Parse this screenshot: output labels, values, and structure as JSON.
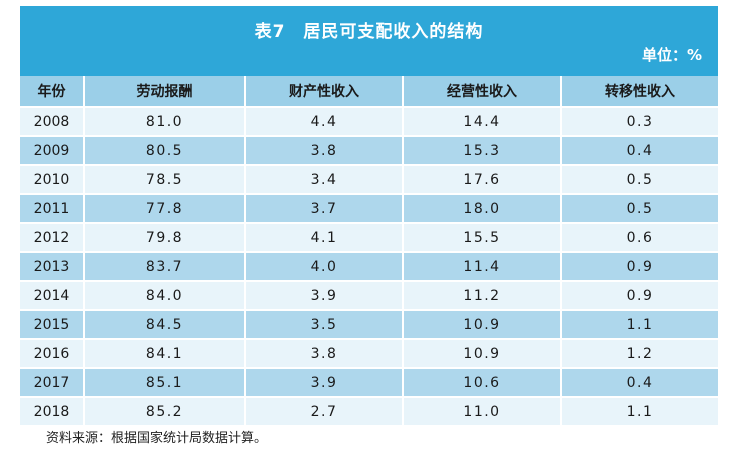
{
  "table": {
    "title": "表7　居民可支配收入的结构",
    "unit": "单位：%",
    "headers": [
      "年份",
      "劳动报酬",
      "财产性收入",
      "经营性收入",
      "转移性收入"
    ],
    "rows": [
      [
        "2008",
        "81.0",
        "4.4",
        "14.4",
        "0.3"
      ],
      [
        "2009",
        "80.5",
        "3.8",
        "15.3",
        "0.4"
      ],
      [
        "2010",
        "78.5",
        "3.4",
        "17.6",
        "0.5"
      ],
      [
        "2011",
        "77.8",
        "3.7",
        "18.0",
        "0.5"
      ],
      [
        "2012",
        "79.8",
        "4.1",
        "15.5",
        "0.6"
      ],
      [
        "2013",
        "83.7",
        "4.0",
        "11.4",
        "0.9"
      ],
      [
        "2014",
        "84.0",
        "3.9",
        "11.2",
        "0.9"
      ],
      [
        "2015",
        "84.5",
        "3.5",
        "10.9",
        "1.1"
      ],
      [
        "2016",
        "84.1",
        "3.8",
        "10.9",
        "1.2"
      ],
      [
        "2017",
        "85.1",
        "3.9",
        "10.6",
        "0.4"
      ],
      [
        "2018",
        "85.2",
        "2.7",
        "11.0",
        "1.1"
      ]
    ]
  },
  "source_note": "资料来源：根据国家统计局数据计算。",
  "colors": {
    "header_bg": "#2ea7d8",
    "column_header_bg": "#9bcfe8",
    "row_light": "#e8f4fa",
    "row_dark": "#aed7ec"
  }
}
